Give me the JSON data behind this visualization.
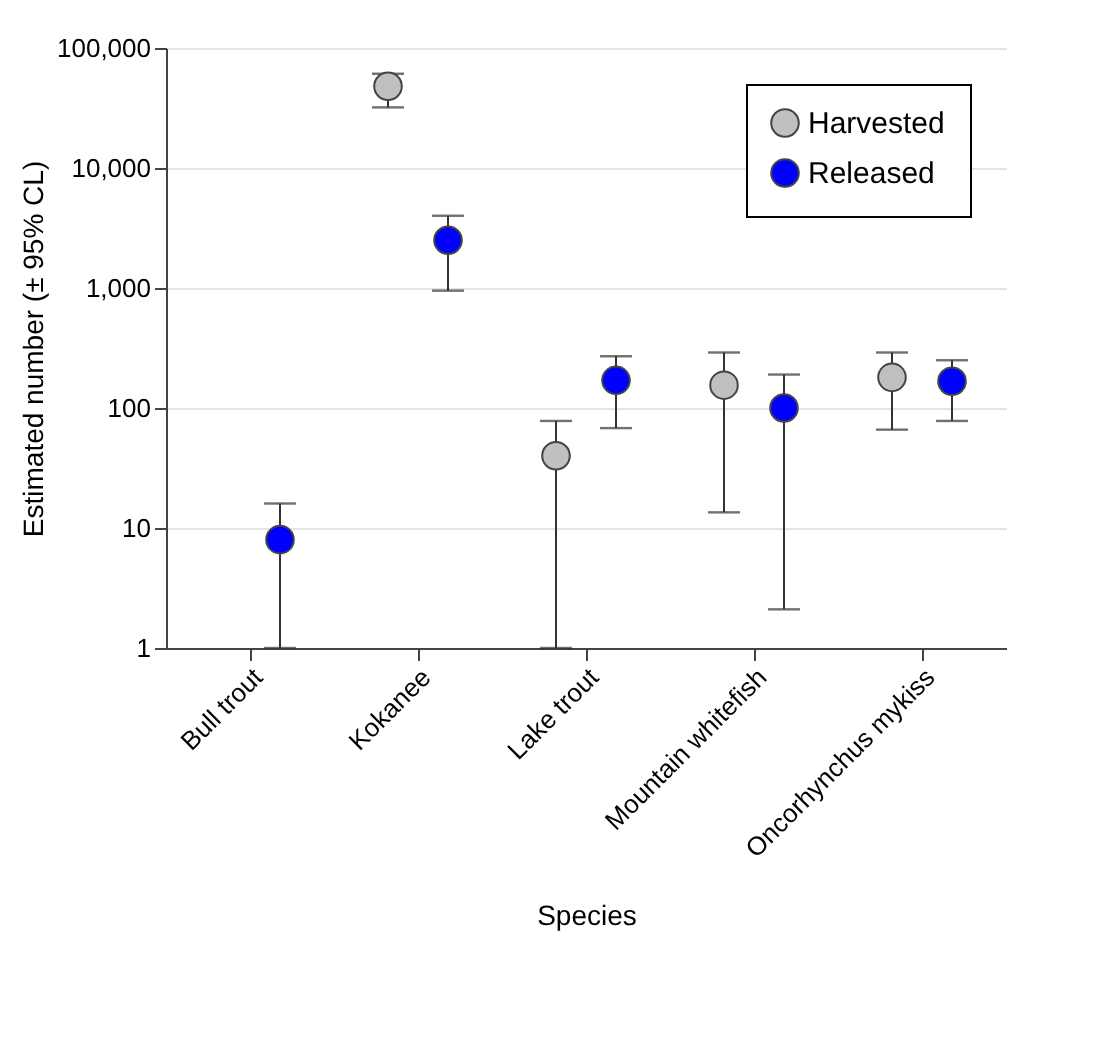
{
  "chart_data": {
    "type": "scatter",
    "xlabel": "Species",
    "ylabel": "Estimated number (± 95% CL)",
    "categories": [
      "Bull trout",
      "Kokanee",
      "Lake trout",
      "Mountain whitefish",
      "Oncorhynchus mykiss"
    ],
    "series": [
      {
        "name": "Harvested",
        "color": "#c0c0c0",
        "values": [
          null,
          48000,
          40,
          155,
          180
        ],
        "errors": [
          null,
          [
            32000,
            61000
          ],
          [
            1,
            78
          ],
          [
            13.5,
            290
          ],
          [
            66,
            290
          ]
        ]
      },
      {
        "name": "Released",
        "color": "#0000ff",
        "values": [
          8,
          2500,
          170,
          100,
          167
        ],
        "errors": [
          [
            1,
            16
          ],
          [
            950,
            4000
          ],
          [
            68,
            270
          ],
          [
            2.1,
            190
          ],
          [
            78,
            250
          ]
        ]
      }
    ],
    "log": "y",
    "ylim": [
      1,
      100000
    ],
    "yticks": [
      1,
      10,
      100,
      {
        "value": 1000,
        "label": "1,000"
      },
      {
        "value": 10000,
        "label": "10,000"
      },
      {
        "value": 100000,
        "label": "100,000"
      }
    ],
    "grid": "y",
    "legend": "top right",
    "marker": "circle"
  }
}
